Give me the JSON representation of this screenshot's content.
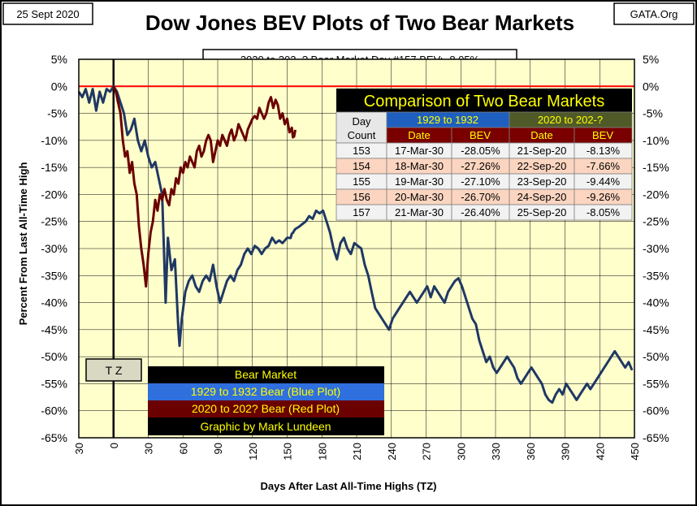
{
  "header": {
    "date": "25 Sept 2020",
    "title": "Dow Jones BEV Plots of Two Bear Markets",
    "source": "GATA.Org",
    "status": "2020 to 202_? Bear Market Day #157 BEV: -8.05%"
  },
  "tz_label": "T Z",
  "legend": {
    "title": "Bear Market",
    "blue": "1929 to 1932 Bear (Blue Plot)",
    "red": "2020 to 202? Bear (Red Plot)",
    "credit": "Graphic by Mark Lundeen"
  },
  "table": {
    "title": "Comparison of Two Bear Markets",
    "day_header": [
      "Day",
      "Count"
    ],
    "group_1929": "1929 to 1932",
    "group_2020": "2020 to 202-?",
    "sub_headers": [
      "Date",
      "BEV",
      "Date",
      "BEV"
    ],
    "rows": [
      {
        "day": "153",
        "d1": "17-Mar-30",
        "b1": "-28.05%",
        "d2": "21-Sep-20",
        "b2": "-8.13%"
      },
      {
        "day": "154",
        "d1": "18-Mar-30",
        "b1": "-27.26%",
        "d2": "22-Sep-20",
        "b2": "-7.66%"
      },
      {
        "day": "155",
        "d1": "19-Mar-30",
        "b1": "-27.10%",
        "d2": "23-Sep-20",
        "b2": "-9.44%"
      },
      {
        "day": "156",
        "d1": "20-Mar-30",
        "b1": "-26.70%",
        "d2": "24-Sep-20",
        "b2": "-9.26%"
      },
      {
        "day": "157",
        "d1": "21-Mar-30",
        "b1": "-26.40%",
        "d2": "25-Sep-20",
        "b2": "-8.05%"
      }
    ]
  },
  "colors": {
    "background": "#ffffcc",
    "blue_series": "#1f3864",
    "red_series": "#6b0000",
    "zero_line": "#ff0000",
    "table_title_bg": "#000000",
    "table_title_fg": "#ffff00",
    "group_1929_bg": "#1f5fbf",
    "group_2020_bg": "#4f5a28",
    "subheader_bg": "#7a0000",
    "row_shade_a": "#f2f2f2",
    "row_shade_b": "#fbd5c0"
  },
  "chart_data": {
    "type": "line",
    "xlabel": "Days After Last All-Time Highs (TZ)",
    "ylabel": "Percent From Last All-Time High",
    "xlim": [
      -30,
      450
    ],
    "ylim": [
      -65,
      5
    ],
    "x_ticks": [
      "30",
      "0",
      "30",
      "60",
      "90",
      "120",
      "150",
      "180",
      "210",
      "240",
      "270",
      "300",
      "330",
      "360",
      "390",
      "420",
      "450"
    ],
    "x_tick_values": [
      -30,
      0,
      30,
      60,
      90,
      120,
      150,
      180,
      210,
      240,
      270,
      300,
      330,
      360,
      390,
      420,
      450
    ],
    "y_ticks": [
      "5%",
      "0%",
      "-5%",
      "-10%",
      "-15%",
      "-20%",
      "-25%",
      "-30%",
      "-35%",
      "-40%",
      "-45%",
      "-50%",
      "-55%",
      "-60%",
      "-65%"
    ],
    "y_tick_values": [
      5,
      0,
      -5,
      -10,
      -15,
      -20,
      -25,
      -30,
      -35,
      -40,
      -45,
      -50,
      -55,
      -60,
      -65
    ],
    "grid": true,
    "series": [
      {
        "name": "1929 to 1932 Bear (Blue Plot)",
        "color": "#1f3864",
        "points": [
          [
            -30,
            -1
          ],
          [
            -27,
            -2
          ],
          [
            -24,
            -0.5
          ],
          [
            -21,
            -3
          ],
          [
            -18,
            -0.5
          ],
          [
            -15,
            -4.5
          ],
          [
            -12,
            -1
          ],
          [
            -9,
            -3
          ],
          [
            -6,
            -0.5
          ],
          [
            -3,
            -1
          ],
          [
            0,
            0
          ],
          [
            3,
            -1
          ],
          [
            6,
            -3
          ],
          [
            9,
            -5
          ],
          [
            12,
            -9
          ],
          [
            15,
            -8
          ],
          [
            18,
            -6
          ],
          [
            21,
            -10
          ],
          [
            24,
            -12
          ],
          [
            27,
            -10
          ],
          [
            30,
            -13
          ],
          [
            33,
            -15
          ],
          [
            36,
            -14
          ],
          [
            39,
            -17
          ],
          [
            42,
            -20
          ],
          [
            45,
            -40
          ],
          [
            47,
            -28
          ],
          [
            50,
            -34
          ],
          [
            53,
            -32
          ],
          [
            56,
            -45
          ],
          [
            57,
            -48
          ],
          [
            59,
            -43
          ],
          [
            62,
            -38
          ],
          [
            65,
            -36
          ],
          [
            68,
            -35
          ],
          [
            71,
            -37
          ],
          [
            74,
            -38
          ],
          [
            77,
            -36
          ],
          [
            80,
            -35
          ],
          [
            83,
            -36
          ],
          [
            86,
            -33
          ],
          [
            89,
            -37
          ],
          [
            92,
            -40
          ],
          [
            95,
            -38
          ],
          [
            98,
            -36
          ],
          [
            101,
            -35
          ],
          [
            104,
            -36
          ],
          [
            107,
            -34
          ],
          [
            110,
            -33
          ],
          [
            113,
            -31
          ],
          [
            116,
            -30
          ],
          [
            119,
            -31
          ],
          [
            122,
            -29.5
          ],
          [
            125,
            -30
          ],
          [
            128,
            -31
          ],
          [
            131,
            -30
          ],
          [
            134,
            -29.5
          ],
          [
            137,
            -28
          ],
          [
            140,
            -29
          ],
          [
            143,
            -28.5
          ],
          [
            146,
            -29
          ],
          [
            150,
            -28
          ],
          [
            153,
            -28.05
          ],
          [
            154,
            -27.26
          ],
          [
            155,
            -27.1
          ],
          [
            156,
            -26.7
          ],
          [
            157,
            -26.4
          ],
          [
            160,
            -26
          ],
          [
            163,
            -25.5
          ],
          [
            166,
            -25
          ],
          [
            169,
            -24
          ],
          [
            172,
            -24.5
          ],
          [
            175,
            -23
          ],
          [
            178,
            -23.5
          ],
          [
            181,
            -23
          ],
          [
            184,
            -25
          ],
          [
            187,
            -27
          ],
          [
            190,
            -30
          ],
          [
            193,
            -32
          ],
          [
            196,
            -29
          ],
          [
            199,
            -28
          ],
          [
            202,
            -30
          ],
          [
            205,
            -31
          ],
          [
            208,
            -29
          ],
          [
            211,
            -29.5
          ],
          [
            214,
            -30
          ],
          [
            217,
            -33
          ],
          [
            220,
            -35
          ],
          [
            223,
            -38
          ],
          [
            226,
            -41
          ],
          [
            229,
            -42
          ],
          [
            232,
            -43
          ],
          [
            235,
            -44
          ],
          [
            238,
            -45
          ],
          [
            241,
            -43
          ],
          [
            244,
            -42
          ],
          [
            247,
            -41
          ],
          [
            250,
            -40
          ],
          [
            253,
            -39
          ],
          [
            256,
            -38
          ],
          [
            259,
            -39
          ],
          [
            262,
            -40
          ],
          [
            265,
            -39
          ],
          [
            268,
            -38
          ],
          [
            271,
            -37
          ],
          [
            274,
            -39
          ],
          [
            277,
            -37
          ],
          [
            280,
            -38
          ],
          [
            283,
            -39
          ],
          [
            286,
            -40
          ],
          [
            289,
            -38
          ],
          [
            292,
            -37
          ],
          [
            295,
            -36
          ],
          [
            298,
            -35.5
          ],
          [
            301,
            -37
          ],
          [
            304,
            -39
          ],
          [
            307,
            -41
          ],
          [
            310,
            -43
          ],
          [
            313,
            -44
          ],
          [
            316,
            -47
          ],
          [
            319,
            -49
          ],
          [
            322,
            -51
          ],
          [
            325,
            -50
          ],
          [
            328,
            -52
          ],
          [
            331,
            -53
          ],
          [
            334,
            -52
          ],
          [
            337,
            -51
          ],
          [
            340,
            -50
          ],
          [
            343,
            -51
          ],
          [
            346,
            -52
          ],
          [
            349,
            -54
          ],
          [
            352,
            -55
          ],
          [
            355,
            -54
          ],
          [
            358,
            -53
          ],
          [
            361,
            -52
          ],
          [
            364,
            -53
          ],
          [
            367,
            -54
          ],
          [
            370,
            -55
          ],
          [
            373,
            -57
          ],
          [
            376,
            -58
          ],
          [
            379,
            -58.5
          ],
          [
            382,
            -57
          ],
          [
            385,
            -56
          ],
          [
            388,
            -57
          ],
          [
            391,
            -55
          ],
          [
            394,
            -56
          ],
          [
            397,
            -57
          ],
          [
            400,
            -58
          ],
          [
            403,
            -57
          ],
          [
            406,
            -56
          ],
          [
            409,
            -55
          ],
          [
            412,
            -56
          ],
          [
            415,
            -55
          ],
          [
            418,
            -54
          ],
          [
            421,
            -53
          ],
          [
            424,
            -52
          ],
          [
            427,
            -51
          ],
          [
            430,
            -50
          ],
          [
            433,
            -49
          ],
          [
            436,
            -50
          ],
          [
            439,
            -51
          ],
          [
            442,
            -52
          ],
          [
            445,
            -51
          ],
          [
            448,
            -52.5
          ]
        ]
      },
      {
        "name": "2020 to 202? Bear (Red Plot)",
        "color": "#6b0000",
        "points": [
          [
            0,
            0
          ],
          [
            2,
            -1
          ],
          [
            4,
            -3
          ],
          [
            6,
            -5
          ],
          [
            8,
            -10
          ],
          [
            10,
            -13
          ],
          [
            12,
            -12
          ],
          [
            14,
            -16
          ],
          [
            16,
            -14
          ],
          [
            18,
            -18
          ],
          [
            20,
            -20
          ],
          [
            22,
            -26
          ],
          [
            24,
            -30
          ],
          [
            26,
            -33
          ],
          [
            28,
            -37
          ],
          [
            30,
            -31
          ],
          [
            32,
            -27
          ],
          [
            34,
            -25
          ],
          [
            36,
            -21
          ],
          [
            38,
            -23
          ],
          [
            40,
            -20
          ],
          [
            42,
            -21
          ],
          [
            44,
            -19
          ],
          [
            46,
            -21
          ],
          [
            48,
            -22
          ],
          [
            50,
            -19
          ],
          [
            52,
            -20
          ],
          [
            54,
            -17
          ],
          [
            56,
            -18
          ],
          [
            58,
            -15
          ],
          [
            60,
            -16
          ],
          [
            62,
            -14
          ],
          [
            64,
            -15
          ],
          [
            66,
            -13
          ],
          [
            68,
            -14
          ],
          [
            70,
            -15
          ],
          [
            72,
            -12
          ],
          [
            74,
            -11
          ],
          [
            76,
            -13
          ],
          [
            78,
            -12
          ],
          [
            80,
            -10
          ],
          [
            82,
            -9
          ],
          [
            84,
            -10
          ],
          [
            86,
            -14
          ],
          [
            88,
            -12
          ],
          [
            90,
            -10
          ],
          [
            92,
            -11
          ],
          [
            94,
            -9
          ],
          [
            96,
            -10
          ],
          [
            98,
            -11
          ],
          [
            100,
            -9
          ],
          [
            102,
            -8
          ],
          [
            104,
            -10
          ],
          [
            106,
            -9
          ],
          [
            108,
            -7
          ],
          [
            110,
            -8
          ],
          [
            112,
            -9
          ],
          [
            114,
            -10
          ],
          [
            116,
            -8
          ],
          [
            118,
            -7
          ],
          [
            120,
            -6
          ],
          [
            122,
            -5.5
          ],
          [
            124,
            -6
          ],
          [
            126,
            -4
          ],
          [
            128,
            -5
          ],
          [
            130,
            -6
          ],
          [
            132,
            -5
          ],
          [
            134,
            -3
          ],
          [
            136,
            -2
          ],
          [
            138,
            -4
          ],
          [
            140,
            -2.5
          ],
          [
            142,
            -3.5
          ],
          [
            144,
            -6
          ],
          [
            146,
            -5
          ],
          [
            148,
            -7
          ],
          [
            150,
            -6
          ],
          [
            152,
            -8.5
          ],
          [
            153,
            -8.13
          ],
          [
            154,
            -7.66
          ],
          [
            155,
            -9.44
          ],
          [
            156,
            -9.26
          ],
          [
            157,
            -8.05
          ]
        ]
      }
    ],
    "reference_lines": [
      {
        "axis": "y",
        "value": 0,
        "color": "#ff0000"
      },
      {
        "axis": "x",
        "value": 0,
        "color": "#000000"
      }
    ]
  }
}
